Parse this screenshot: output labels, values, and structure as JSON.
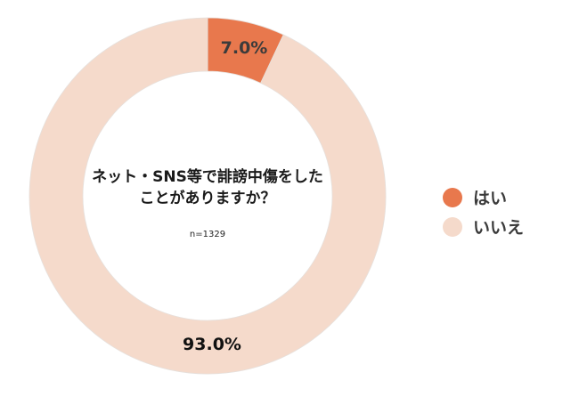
{
  "chart_data": {
    "type": "pie",
    "variant": "donut",
    "title": "ネット・SNS等で誹謗中傷をしたことがありますか？",
    "subtitle": "n=1329",
    "categories": [
      "はい",
      "いいえ"
    ],
    "values": [
      7.0,
      93.0
    ],
    "value_labels": [
      "7.0%",
      "93.0%"
    ],
    "colors": [
      "#E8784D",
      "#F5DACB"
    ],
    "legend_position": "right"
  },
  "center": {
    "title": "ネット・SNS等で誹謗中傷をしたことがありますか？",
    "n": "n=1329"
  },
  "labels": {
    "yes": "7.0%",
    "no": "93.0%"
  },
  "legend": {
    "items": [
      {
        "label": "はい",
        "color": "#E8784D"
      },
      {
        "label": "いいえ",
        "color": "#F5DACB"
      }
    ]
  }
}
